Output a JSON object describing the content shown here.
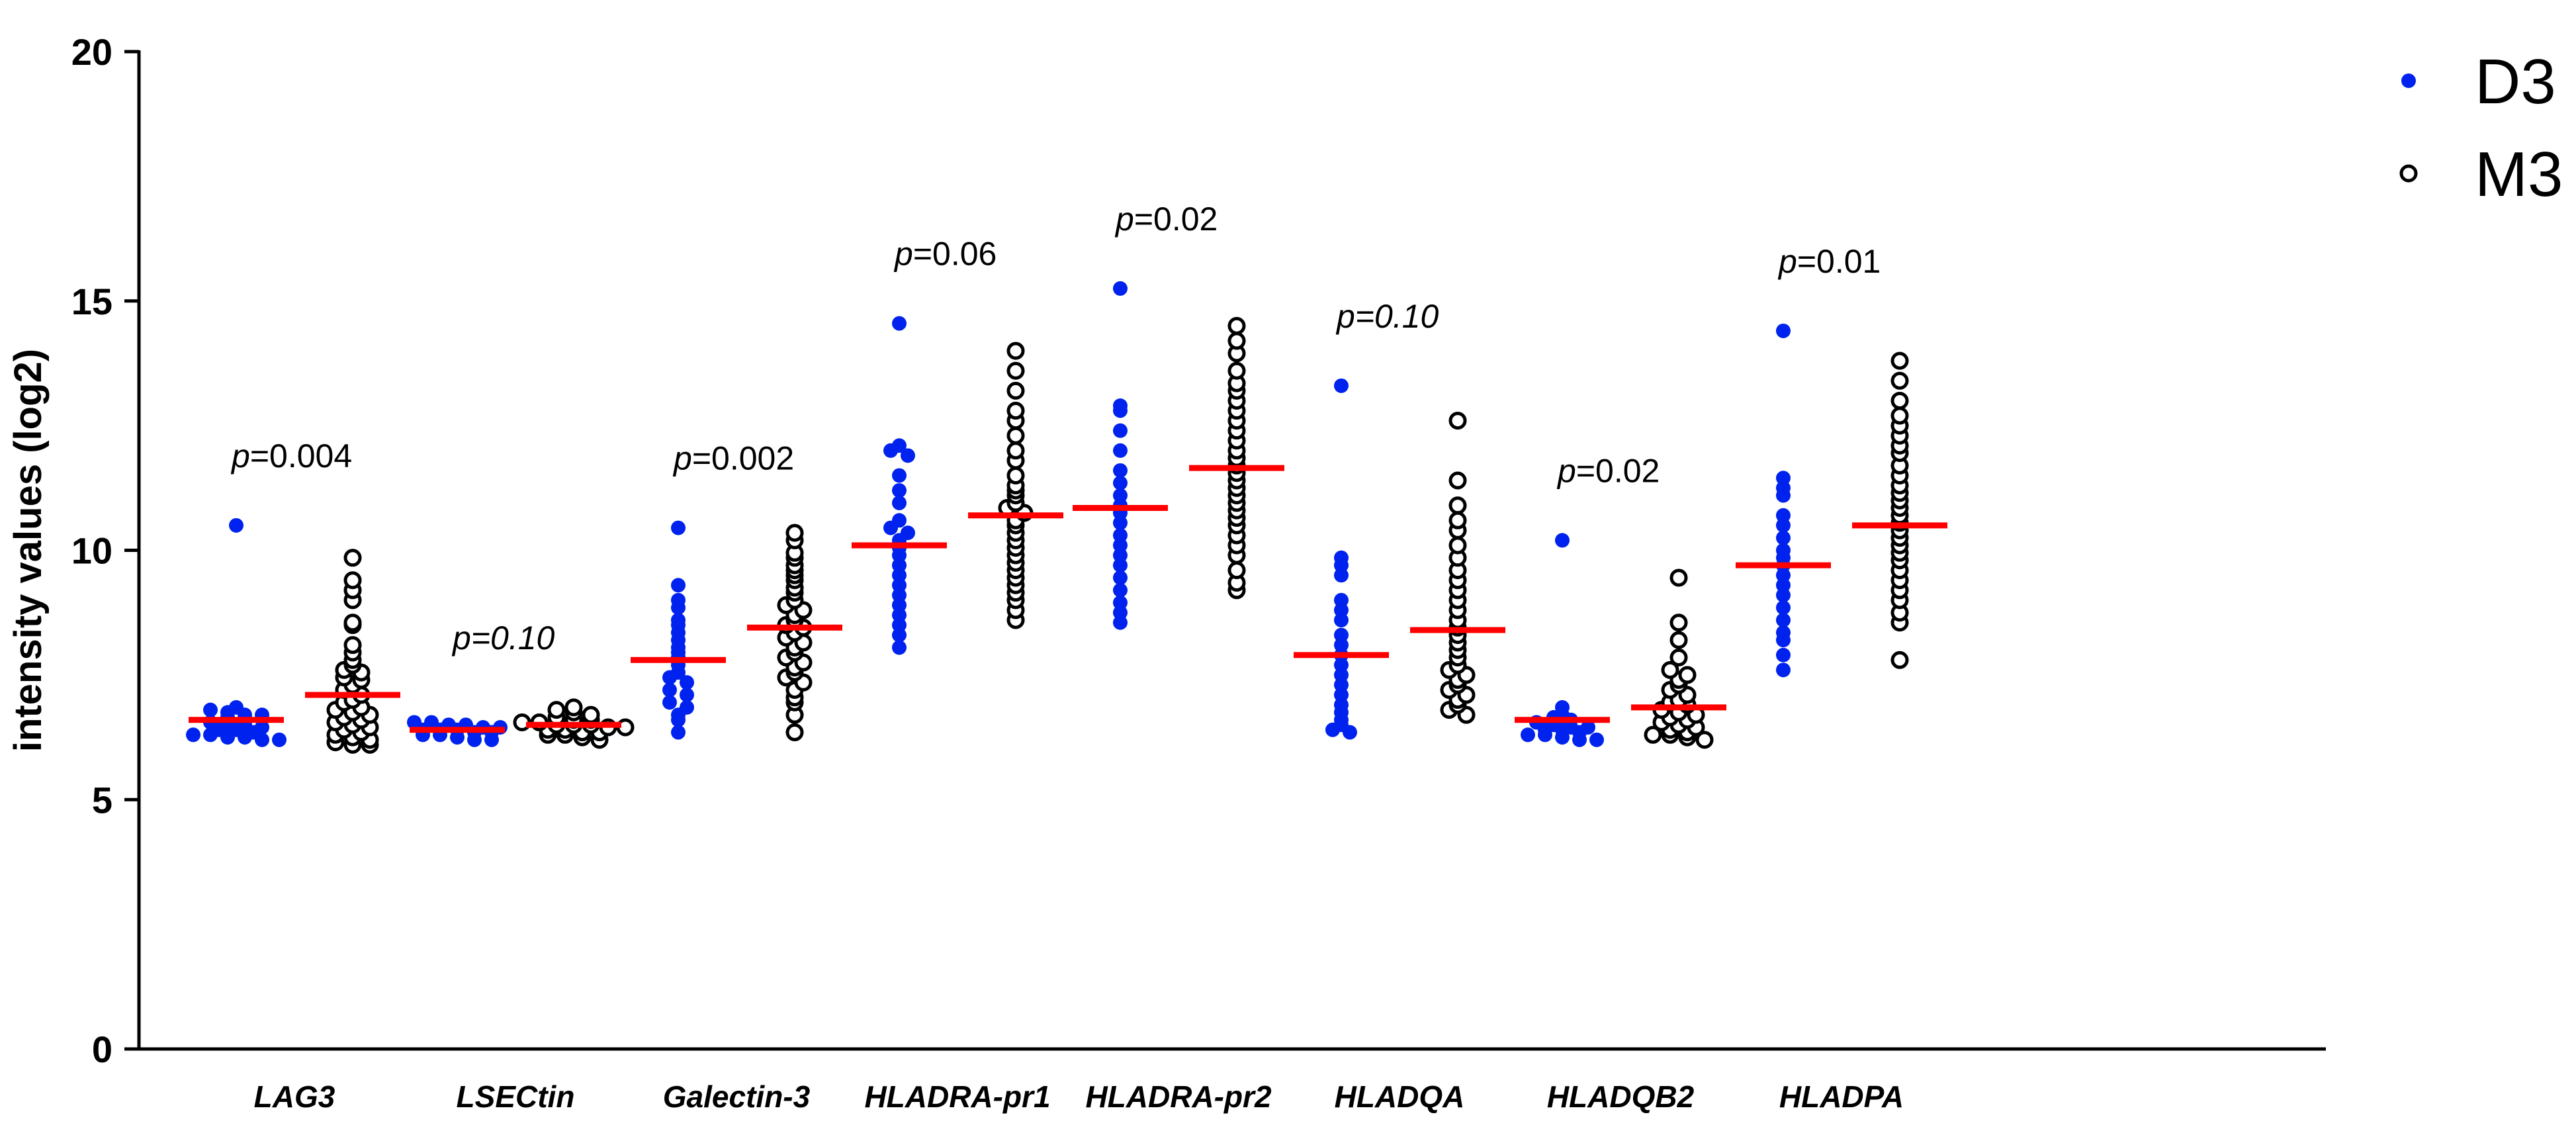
{
  "chart_data": {
    "type": "scatter",
    "subtype": "dot-plot",
    "title": "",
    "xlabel": "",
    "ylabel": "intensity values (log2)",
    "ylim": [
      0,
      20
    ],
    "yticks": [
      0,
      5,
      10,
      15,
      20
    ],
    "grid": false,
    "legend_position": "top-right",
    "colors": {
      "d3": "#0022ee",
      "m3_stroke": "#000000",
      "median": "#ff0000"
    },
    "series": [
      {
        "name": "D3",
        "marker": "filled-circle"
      },
      {
        "name": "M3",
        "marker": "open-circle"
      }
    ],
    "groups": [
      {
        "category": "LAG3",
        "p_prefix": "p",
        "p_text": "=0.004",
        "p_italic": false,
        "D3": {
          "median": 6.6,
          "values": [
            10.5,
            6.85,
            6.8,
            6.75,
            6.7,
            6.7,
            6.65,
            6.6,
            6.55,
            6.5,
            6.5,
            6.45,
            6.4,
            6.4,
            6.35,
            6.3,
            6.3,
            6.25,
            6.25,
            6.2,
            6.2
          ]
        },
        "M3": {
          "median": 7.1,
          "values": [
            9.85,
            9.4,
            9.2,
            9.0,
            8.55,
            8.5,
            8.1,
            7.95,
            7.8,
            7.7,
            7.6,
            7.55,
            7.45,
            7.4,
            7.3,
            7.2,
            7.1,
            7.0,
            6.95,
            6.85,
            6.8,
            6.75,
            6.7,
            6.65,
            6.6,
            6.55,
            6.5,
            6.45,
            6.4,
            6.35,
            6.3,
            6.25,
            6.2,
            6.15,
            6.1,
            6.1
          ]
        }
      },
      {
        "category": "LSECtin",
        "p_prefix": "p",
        "p_text": "=0.10",
        "p_italic": true,
        "D3": {
          "median": 6.4,
          "values": [
            6.55,
            6.55,
            6.5,
            6.5,
            6.45,
            6.45,
            6.4,
            6.4,
            6.4,
            6.35,
            6.35,
            6.3,
            6.3,
            6.25,
            6.2,
            6.2
          ]
        },
        "M3": {
          "median": 6.5,
          "values": [
            6.85,
            6.8,
            6.75,
            6.7,
            6.65,
            6.6,
            6.6,
            6.55,
            6.55,
            6.5,
            6.5,
            6.5,
            6.45,
            6.45,
            6.4,
            6.4,
            6.35,
            6.35,
            6.3,
            6.3,
            6.25,
            6.2
          ]
        }
      },
      {
        "category": "Galectin-3",
        "p_prefix": "p",
        "p_text": "=0.002",
        "p_italic": false,
        "D3": {
          "median": 7.8,
          "values": [
            10.45,
            9.3,
            9.0,
            8.85,
            8.6,
            8.5,
            8.35,
            8.2,
            8.05,
            7.95,
            7.85,
            7.7,
            7.55,
            7.45,
            7.35,
            7.2,
            7.1,
            6.95,
            6.85,
            6.7,
            6.6,
            6.35
          ]
        },
        "M3": {
          "median": 8.45,
          "values": [
            10.35,
            10.2,
            9.95,
            9.85,
            9.7,
            9.6,
            9.5,
            9.4,
            9.25,
            9.15,
            9.0,
            8.9,
            8.8,
            8.7,
            8.6,
            8.5,
            8.45,
            8.35,
            8.25,
            8.15,
            8.05,
            7.95,
            7.85,
            7.75,
            7.65,
            7.55,
            7.45,
            7.35,
            7.2,
            7.05,
            6.95,
            6.7,
            6.35
          ]
        }
      },
      {
        "category": "HLADRA-pr1",
        "p_prefix": "p",
        "p_text": "=0.06",
        "p_italic": false,
        "D3": {
          "median": 10.1,
          "values": [
            14.55,
            12.1,
            12.0,
            11.9,
            11.5,
            11.2,
            10.95,
            10.6,
            10.45,
            10.35,
            10.2,
            10.05,
            9.9,
            9.7,
            9.5,
            9.3,
            9.1,
            8.9,
            8.7,
            8.5,
            8.3,
            8.05
          ]
        },
        "M3": {
          "median": 10.7,
          "values": [
            14.0,
            13.6,
            13.2,
            12.8,
            12.6,
            12.3,
            12.0,
            11.8,
            11.5,
            11.3,
            11.2,
            11.1,
            10.95,
            10.85,
            10.75,
            10.6,
            10.5,
            10.35,
            10.2,
            10.05,
            9.9,
            9.75,
            9.6,
            9.45,
            9.3,
            9.15,
            9.0,
            8.8,
            8.6
          ]
        }
      },
      {
        "category": "HLADRA-pr2",
        "p_prefix": "p",
        "p_text": "=0.02",
        "p_italic": false,
        "D3": {
          "median": 10.85,
          "values": [
            15.25,
            12.9,
            12.8,
            12.4,
            12.0,
            11.6,
            11.35,
            11.1,
            10.9,
            10.75,
            10.55,
            10.3,
            10.1,
            9.9,
            9.7,
            9.45,
            9.2,
            8.95,
            8.75,
            8.55
          ]
        },
        "M3": {
          "median": 11.65,
          "values": [
            14.5,
            14.2,
            13.95,
            13.6,
            13.35,
            13.2,
            13.0,
            12.8,
            12.6,
            12.4,
            12.2,
            12.0,
            11.85,
            11.7,
            11.55,
            11.4,
            11.25,
            11.1,
            10.95,
            10.8,
            10.65,
            10.5,
            10.3,
            10.1,
            9.9,
            9.6,
            9.35,
            9.2
          ]
        }
      },
      {
        "category": "HLADQA",
        "p_prefix": "p",
        "p_text": "=0.10",
        "p_italic": true,
        "D3": {
          "median": 7.9,
          "values": [
            13.3,
            9.85,
            9.7,
            9.5,
            9.0,
            8.8,
            8.6,
            8.3,
            8.1,
            7.9,
            7.7,
            7.5,
            7.3,
            7.1,
            6.9,
            6.75,
            6.6,
            6.5,
            6.4,
            6.35
          ]
        },
        "M3": {
          "median": 8.4,
          "values": [
            12.6,
            11.4,
            10.9,
            10.6,
            10.4,
            10.1,
            9.85,
            9.6,
            9.4,
            9.2,
            9.0,
            8.8,
            8.6,
            8.45,
            8.3,
            8.15,
            8.0,
            7.85,
            7.7,
            7.6,
            7.5,
            7.4,
            7.3,
            7.2,
            7.1,
            7.0,
            6.9,
            6.8,
            6.7
          ]
        }
      },
      {
        "category": "HLADQB2",
        "p_prefix": "p",
        "p_text": "=0.02",
        "p_italic": false,
        "D3": {
          "median": 6.6,
          "values": [
            10.2,
            6.85,
            6.7,
            6.65,
            6.6,
            6.55,
            6.5,
            6.45,
            6.45,
            6.4,
            6.4,
            6.35,
            6.3,
            6.3,
            6.25,
            6.2,
            6.2
          ]
        },
        "M3": {
          "median": 6.85,
          "values": [
            9.45,
            8.55,
            8.2,
            7.85,
            7.6,
            7.5,
            7.4,
            7.3,
            7.2,
            7.1,
            7.0,
            6.95,
            6.9,
            6.8,
            6.75,
            6.7,
            6.65,
            6.6,
            6.55,
            6.5,
            6.45,
            6.4,
            6.35,
            6.3,
            6.3,
            6.25,
            6.2
          ]
        }
      },
      {
        "category": "HLADPA",
        "p_prefix": "p",
        "p_text": "=0.01",
        "p_italic": false,
        "D3": {
          "median": 9.7,
          "values": [
            14.4,
            11.45,
            11.25,
            11.1,
            10.7,
            10.5,
            10.25,
            10.0,
            9.85,
            9.7,
            9.5,
            9.3,
            9.1,
            8.85,
            8.6,
            8.35,
            8.2,
            7.9,
            7.6
          ]
        },
        "M3": {
          "median": 10.5,
          "values": [
            13.8,
            13.4,
            13.0,
            12.7,
            12.5,
            12.3,
            12.1,
            11.95,
            11.7,
            11.5,
            11.3,
            11.15,
            11.0,
            10.85,
            10.7,
            10.55,
            10.4,
            10.25,
            10.1,
            9.95,
            9.8,
            9.6,
            9.4,
            9.2,
            9.0,
            8.75,
            8.55,
            7.8
          ]
        }
      }
    ]
  }
}
